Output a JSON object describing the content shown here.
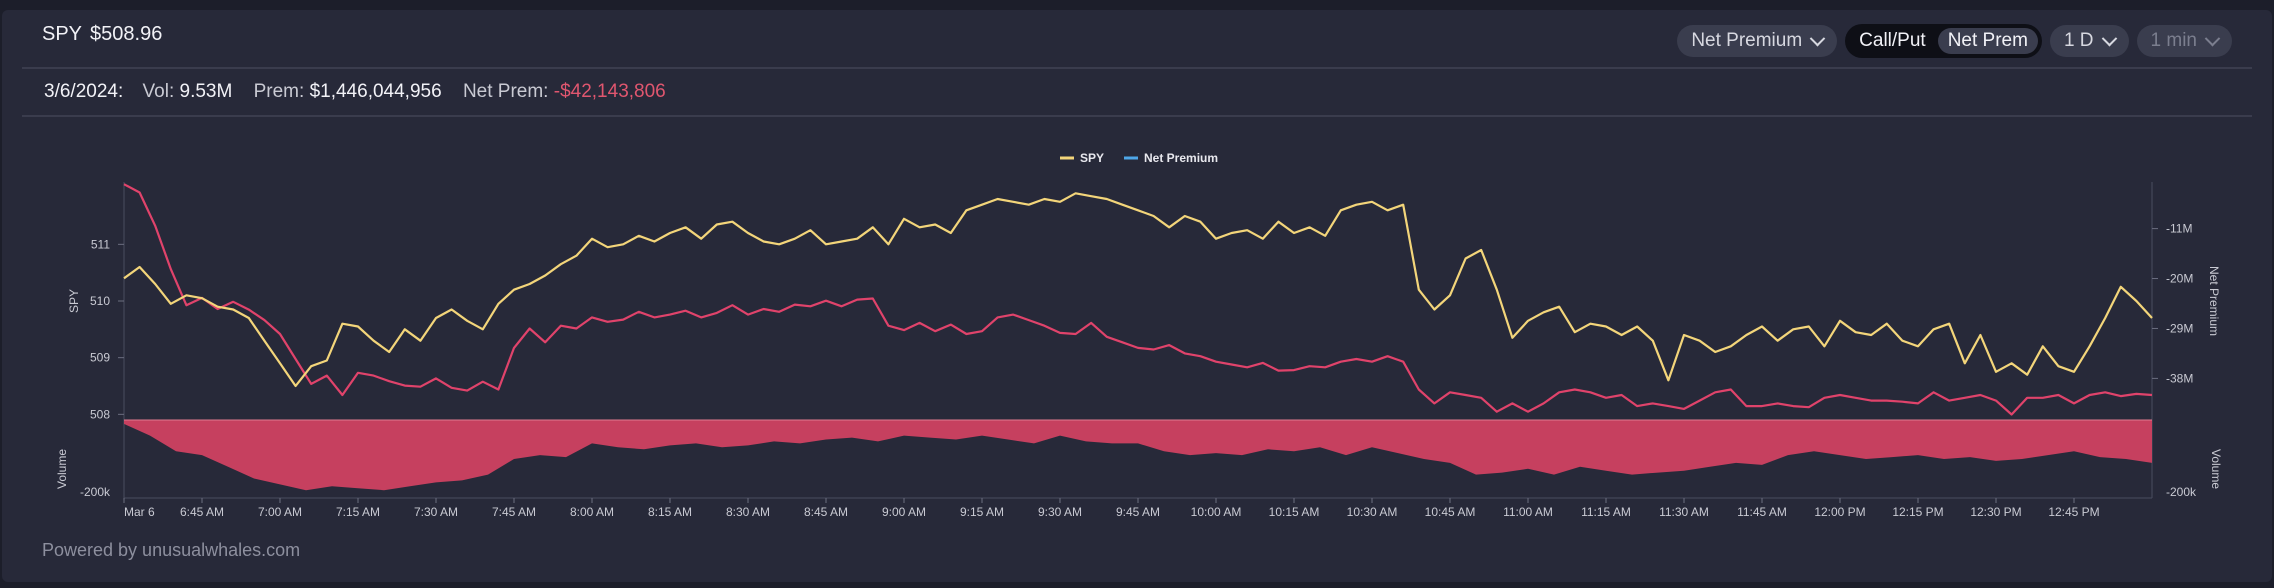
{
  "header": {
    "symbol": "SPY",
    "price": "$508.96",
    "mode_dropdown": "Net Premium",
    "toggle": [
      "Call/Put",
      "Net Prem"
    ],
    "range_dropdown": "1 D",
    "interval_dropdown": "1 min"
  },
  "stats": {
    "date": "3/6/2024:",
    "vol_label": "Vol:",
    "vol_value": "9.53M",
    "prem_label": "Prem:",
    "prem_value": "$1,446,044,956",
    "net_label": "Net Prem:",
    "net_value": "-$42,143,806"
  },
  "footer": {
    "text": "Powered by unusualwhales.com"
  },
  "colors": {
    "spy": "#f3d57a",
    "net_premium": "#e0436b",
    "net_premium_legend": "#4ea6e8",
    "volume": "#c6405f",
    "negative": "#e0566f"
  },
  "chart_data": {
    "type": "line",
    "legend": [
      {
        "name": "SPY",
        "color": "#f3d57a"
      },
      {
        "name": "Net Premium",
        "color": "#4ea6e8"
      }
    ],
    "legend_position": "top-center",
    "y_left_label": "SPY",
    "y_left_ticks": [
      508,
      509,
      510,
      511
    ],
    "y_left_range": [
      507.9,
      512.1
    ],
    "y_right_label": "Net Premium",
    "y_right_ticks": [
      "-11M",
      "-20M",
      "-29M",
      "-38M"
    ],
    "y_right_range": [
      -45.5,
      -2.6
    ],
    "volume_label": "Volume",
    "volume_tick": "-200k",
    "volume_range": [
      -200,
      0
    ],
    "x_ticks": [
      "Mar 6",
      "6:45 AM",
      "7:00 AM",
      "7:15 AM",
      "7:30 AM",
      "7:45 AM",
      "8:00 AM",
      "8:15 AM",
      "8:30 AM",
      "8:45 AM",
      "9:00 AM",
      "9:15 AM",
      "9:30 AM",
      "9:45 AM",
      "10:00 AM",
      "10:15 AM",
      "10:30 AM",
      "10:45 AM",
      "11:00 AM",
      "11:15 AM",
      "11:30 AM",
      "11:45 AM",
      "12:00 PM",
      "12:15 PM",
      "12:30 PM",
      "12:45 PM"
    ],
    "x_ticks_minutes": [
      -15,
      0,
      15,
      30,
      45,
      60,
      75,
      90,
      105,
      120,
      135,
      150,
      165,
      180,
      195,
      210,
      225,
      240,
      255,
      270,
      285,
      300,
      315,
      330,
      345,
      360
    ],
    "x_range_minutes": [
      -15,
      375
    ],
    "series": [
      {
        "name": "SPY",
        "x": [
          -15,
          -12,
          -9,
          -6,
          -3,
          0,
          3,
          6,
          9,
          12,
          15,
          18,
          21,
          24,
          27,
          30,
          33,
          36,
          39,
          42,
          45,
          48,
          51,
          54,
          57,
          60,
          63,
          66,
          69,
          72,
          75,
          78,
          81,
          84,
          87,
          90,
          93,
          96,
          99,
          102,
          105,
          108,
          111,
          114,
          117,
          120,
          123,
          126,
          129,
          132,
          135,
          138,
          141,
          144,
          147,
          150,
          153,
          156,
          159,
          162,
          165,
          168,
          171,
          174,
          177,
          180,
          183,
          186,
          189,
          192,
          195,
          198,
          201,
          204,
          207,
          210,
          213,
          216,
          219,
          222,
          225,
          228,
          231,
          234,
          237,
          240,
          243,
          246,
          249,
          252,
          255,
          258,
          261,
          264,
          267,
          270,
          273,
          276,
          279,
          282,
          285,
          288,
          291,
          294,
          297,
          300,
          303,
          306,
          309,
          312,
          315,
          318,
          321,
          324,
          327,
          330,
          333,
          336,
          339,
          342,
          345,
          348,
          351,
          354,
          357,
          360,
          363,
          366,
          369,
          372,
          375
        ],
        "values": [
          510.4,
          510.6,
          510.3,
          509.95,
          510.1,
          510.05,
          509.9,
          509.85,
          509.7,
          509.3,
          508.9,
          508.5,
          508.85,
          508.95,
          509.6,
          509.55,
          509.3,
          509.1,
          509.5,
          509.3,
          509.7,
          509.85,
          509.65,
          509.5,
          509.95,
          510.2,
          510.3,
          510.45,
          510.65,
          510.8,
          511.1,
          510.95,
          511.0,
          511.15,
          511.05,
          511.2,
          511.3,
          511.1,
          511.35,
          511.4,
          511.2,
          511.05,
          511.0,
          511.1,
          511.25,
          511.0,
          511.05,
          511.1,
          511.3,
          511.0,
          511.45,
          511.3,
          511.35,
          511.2,
          511.6,
          511.7,
          511.8,
          511.75,
          511.7,
          511.8,
          511.75,
          511.9,
          511.85,
          511.8,
          511.7,
          511.6,
          511.5,
          511.3,
          511.5,
          511.4,
          511.1,
          511.2,
          511.25,
          511.1,
          511.4,
          511.2,
          511.3,
          511.15,
          511.6,
          511.7,
          511.75,
          511.6,
          511.7,
          510.2,
          509.85,
          510.1,
          510.75,
          510.9,
          510.2,
          509.35,
          509.65,
          509.8,
          509.9,
          509.45,
          509.6,
          509.55,
          509.4,
          509.55,
          509.3,
          508.6,
          509.4,
          509.3,
          509.1,
          509.2,
          509.4,
          509.55,
          509.3,
          509.5,
          509.55,
          509.2,
          509.65,
          509.45,
          509.4,
          509.6,
          509.3,
          509.2,
          509.5,
          509.6,
          508.9,
          509.4,
          508.75,
          508.9,
          508.7,
          509.2,
          508.85,
          508.75,
          509.2,
          509.7,
          510.25,
          510.0,
          509.7
        ]
      },
      {
        "name": "Net Premium",
        "x": [
          -15,
          -12,
          -9,
          -6,
          -3,
          0,
          3,
          6,
          9,
          12,
          15,
          18,
          21,
          24,
          27,
          30,
          33,
          36,
          39,
          42,
          45,
          48,
          51,
          54,
          57,
          60,
          63,
          66,
          69,
          72,
          75,
          78,
          81,
          84,
          87,
          90,
          93,
          96,
          99,
          102,
          105,
          108,
          111,
          114,
          117,
          120,
          123,
          126,
          129,
          132,
          135,
          138,
          141,
          144,
          147,
          150,
          153,
          156,
          159,
          162,
          165,
          168,
          171,
          174,
          177,
          180,
          183,
          186,
          189,
          192,
          195,
          198,
          201,
          204,
          207,
          210,
          213,
          216,
          219,
          222,
          225,
          228,
          231,
          234,
          237,
          240,
          243,
          246,
          249,
          252,
          255,
          258,
          261,
          264,
          267,
          270,
          273,
          276,
          279,
          282,
          285,
          288,
          291,
          294,
          297,
          300,
          303,
          306,
          309,
          312,
          315,
          318,
          321,
          324,
          327,
          330,
          333,
          336,
          339,
          342,
          345,
          348,
          351,
          354,
          357,
          360,
          363,
          366,
          369,
          372,
          375
        ],
        "values": [
          -3.0,
          -4.5,
          -10.5,
          -18.3,
          -24.8,
          -23.5,
          -25.5,
          -24.2,
          -25.6,
          -27.5,
          -30.0,
          -34.5,
          -39.0,
          -37.5,
          -41.0,
          -37.0,
          -37.5,
          -38.5,
          -39.3,
          -39.5,
          -38.0,
          -39.7,
          -40.2,
          -38.6,
          -40.0,
          -32.5,
          -29.0,
          -31.5,
          -28.5,
          -29.0,
          -27.0,
          -27.8,
          -27.4,
          -26.0,
          -27.0,
          -26.5,
          -25.8,
          -27.0,
          -26.2,
          -24.8,
          -26.5,
          -25.5,
          -26.0,
          -24.7,
          -25.0,
          -24.0,
          -25.0,
          -23.8,
          -23.6,
          -28.5,
          -29.3,
          -28.0,
          -29.5,
          -28.3,
          -30.0,
          -29.5,
          -27.0,
          -26.5,
          -27.5,
          -28.5,
          -29.8,
          -30.0,
          -28.0,
          -30.5,
          -31.5,
          -32.5,
          -32.8,
          -32.0,
          -33.5,
          -34.0,
          -35.0,
          -35.5,
          -36.0,
          -35.2,
          -36.6,
          -36.5,
          -35.8,
          -36.0,
          -35.0,
          -34.5,
          -35.0,
          -34.0,
          -35.0,
          -40.0,
          -42.5,
          -40.5,
          -41.0,
          -41.5,
          -44.0,
          -42.5,
          -44.0,
          -42.5,
          -40.5,
          -40.0,
          -40.5,
          -41.5,
          -41.0,
          -43.0,
          -42.5,
          -43.0,
          -43.5,
          -42.0,
          -40.5,
          -40.0,
          -43.0,
          -43.0,
          -42.5,
          -43.0,
          -43.2,
          -41.5,
          -41.0,
          -41.5,
          -42.0,
          -42.0,
          -42.2,
          -42.5,
          -40.5,
          -42.0,
          -41.5,
          -41.0,
          -42.0,
          -44.5,
          -41.5,
          -41.5,
          -41.0,
          -42.5,
          -41.0,
          -40.5,
          -41.2,
          -40.8,
          -41.0
        ]
      },
      {
        "name": "Volume",
        "x": [
          -15,
          -10,
          -5,
          0,
          5,
          10,
          15,
          20,
          25,
          30,
          35,
          40,
          45,
          50,
          55,
          60,
          65,
          70,
          75,
          80,
          85,
          90,
          95,
          100,
          105,
          110,
          115,
          120,
          125,
          130,
          135,
          140,
          145,
          150,
          155,
          160,
          165,
          170,
          175,
          180,
          185,
          190,
          195,
          200,
          205,
          210,
          215,
          220,
          225,
          230,
          235,
          240,
          245,
          250,
          255,
          260,
          265,
          270,
          275,
          280,
          285,
          290,
          295,
          300,
          305,
          310,
          315,
          320,
          325,
          330,
          335,
          340,
          345,
          350,
          355,
          360,
          365,
          370,
          375
        ],
        "values": [
          -10,
          -40,
          -80,
          -90,
          -120,
          -150,
          -165,
          -180,
          -170,
          -175,
          -180,
          -170,
          -160,
          -155,
          -140,
          -100,
          -90,
          -95,
          -60,
          -70,
          -75,
          -65,
          -60,
          -70,
          -65,
          -55,
          -60,
          -50,
          -45,
          -55,
          -40,
          -45,
          -50,
          -40,
          -50,
          -60,
          -40,
          -55,
          -60,
          -60,
          -80,
          -90,
          -85,
          -90,
          -75,
          -80,
          -70,
          -90,
          -70,
          -85,
          -100,
          -110,
          -140,
          -135,
          -125,
          -140,
          -120,
          -130,
          -140,
          -135,
          -130,
          -120,
          -110,
          -115,
          -90,
          -80,
          -90,
          -100,
          -95,
          -90,
          -100,
          -95,
          -105,
          -100,
          -90,
          -80,
          -95,
          -100,
          -110
        ]
      }
    ]
  }
}
